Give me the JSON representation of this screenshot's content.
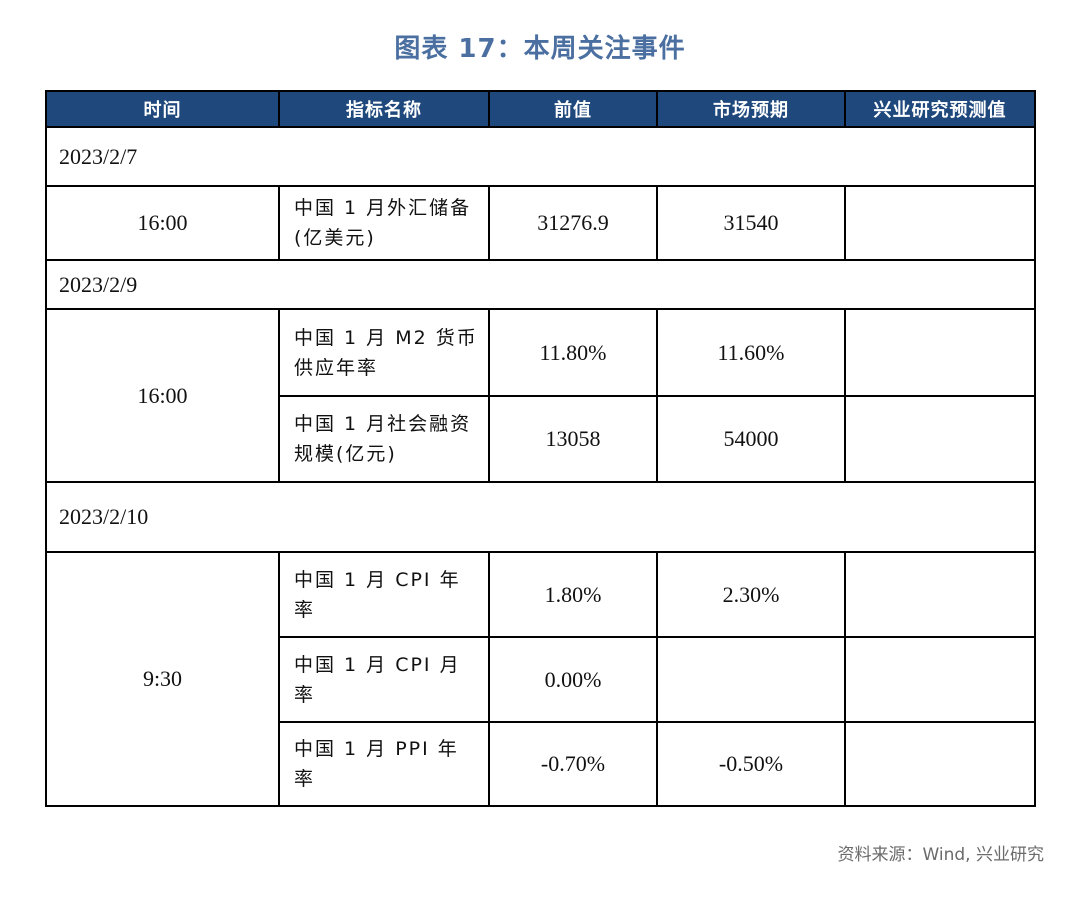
{
  "title": "图表 17：本周关注事件",
  "headers": [
    "时间",
    "指标名称",
    "前值",
    "市场预期",
    "兴业研究预测值"
  ],
  "groups": [
    {
      "date": "2023/2/7",
      "time": "16:00",
      "rows": [
        {
          "indicator": "中国 1 月外汇储备(亿美元)",
          "prev": "31276.9",
          "expect": "31540",
          "forecast": ""
        }
      ]
    },
    {
      "date": "2023/2/9",
      "time": "16:00",
      "rows": [
        {
          "indicator": "中国 1 月 M2 货币供应年率",
          "prev": "11.80%",
          "expect": "11.60%",
          "forecast": ""
        },
        {
          "indicator": "中国 1 月社会融资规模(亿元)",
          "prev": "13058",
          "expect": "54000",
          "forecast": ""
        }
      ]
    },
    {
      "date": "2023/2/10",
      "time": "9:30",
      "rows": [
        {
          "indicator": "中国 1 月 CPI 年率",
          "prev": "1.80%",
          "expect": "2.30%",
          "forecast": ""
        },
        {
          "indicator": "中国 1 月 CPI 月率",
          "prev": "0.00%",
          "expect": "",
          "forecast": ""
        },
        {
          "indicator": "中国 1 月 PPI 年率",
          "prev": "-0.70%",
          "expect": "-0.50%",
          "forecast": ""
        }
      ]
    }
  ],
  "source": "资料来源：Wind, 兴业研究",
  "colors": {
    "header_bg": "#1f497d",
    "title": "#4a6fa0"
  }
}
